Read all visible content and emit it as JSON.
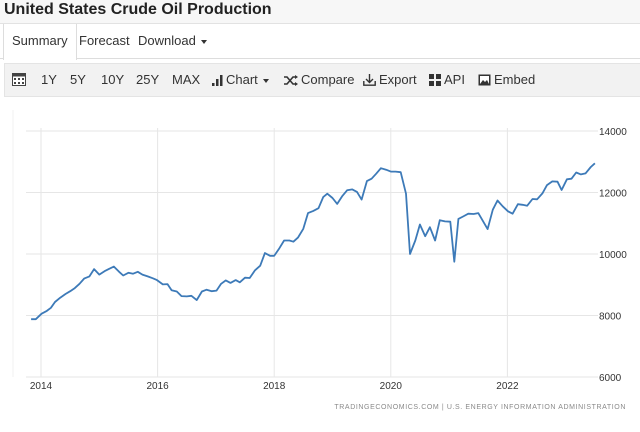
{
  "header": {
    "title": "United States Crude Oil Production"
  },
  "tabs": [
    {
      "label": "Summary",
      "active": true
    },
    {
      "label": "Forecast"
    },
    {
      "label": "Download"
    }
  ],
  "toolbar": {
    "calendar_icon": "calendar-icon",
    "ranges": [
      "1Y",
      "5Y",
      "10Y",
      "25Y",
      "MAX"
    ],
    "chart_label": "Chart",
    "compare_label": "Compare",
    "export_label": "Export",
    "api_label": "API",
    "embed_label": "Embed"
  },
  "source": "TRADINGECONOMICS.COM  |  U.S. ENERGY INFORMATION ADMINISTRATION",
  "chart_data": {
    "type": "line",
    "title": "",
    "xlabel": "",
    "ylabel": "",
    "line_color": "#3d7ab8",
    "grid": true,
    "y_axis_position": "right",
    "xlim": [
      2013.75,
      2023.6
    ],
    "ylim": [
      6000,
      14000
    ],
    "x_ticks": [
      "2014",
      "2016",
      "2018",
      "2020",
      "2022"
    ],
    "y_ticks": [
      "14000",
      "12000",
      "10000",
      "8000",
      "6000"
    ],
    "series": [
      {
        "points": [
          [
            2013.83,
            7880
          ],
          [
            2013.91,
            7880
          ],
          [
            2014.01,
            8060
          ],
          [
            2014.1,
            8150
          ],
          [
            2014.17,
            8250
          ],
          [
            2014.24,
            8440
          ],
          [
            2014.33,
            8580
          ],
          [
            2014.42,
            8700
          ],
          [
            2014.5,
            8790
          ],
          [
            2014.58,
            8890
          ],
          [
            2014.66,
            9030
          ],
          [
            2014.74,
            9200
          ],
          [
            2014.83,
            9270
          ],
          [
            2014.91,
            9510
          ],
          [
            2015.0,
            9330
          ],
          [
            2015.09,
            9440
          ],
          [
            2015.17,
            9520
          ],
          [
            2015.25,
            9590
          ],
          [
            2015.34,
            9420
          ],
          [
            2015.41,
            9300
          ],
          [
            2015.5,
            9390
          ],
          [
            2015.58,
            9360
          ],
          [
            2015.66,
            9420
          ],
          [
            2015.74,
            9330
          ],
          [
            2015.83,
            9270
          ],
          [
            2015.92,
            9210
          ],
          [
            2015.99,
            9150
          ],
          [
            2016.09,
            9010
          ],
          [
            2016.17,
            9020
          ],
          [
            2016.24,
            8820
          ],
          [
            2016.33,
            8780
          ],
          [
            2016.41,
            8630
          ],
          [
            2016.5,
            8620
          ],
          [
            2016.58,
            8640
          ],
          [
            2016.67,
            8500
          ],
          [
            2016.76,
            8780
          ],
          [
            2016.84,
            8840
          ],
          [
            2016.93,
            8790
          ],
          [
            2017.01,
            8810
          ],
          [
            2017.09,
            9030
          ],
          [
            2017.17,
            9140
          ],
          [
            2017.25,
            9060
          ],
          [
            2017.34,
            9150
          ],
          [
            2017.41,
            9080
          ],
          [
            2017.5,
            9230
          ],
          [
            2017.58,
            9220
          ],
          [
            2017.67,
            9470
          ],
          [
            2017.76,
            9620
          ],
          [
            2017.84,
            10030
          ],
          [
            2017.93,
            9940
          ],
          [
            2018.0,
            9940
          ],
          [
            2018.09,
            10190
          ],
          [
            2018.17,
            10440
          ],
          [
            2018.26,
            10440
          ],
          [
            2018.33,
            10400
          ],
          [
            2018.41,
            10540
          ],
          [
            2018.5,
            10820
          ],
          [
            2018.58,
            11330
          ],
          [
            2018.67,
            11400
          ],
          [
            2018.76,
            11490
          ],
          [
            2018.84,
            11850
          ],
          [
            2018.91,
            11960
          ],
          [
            2019.0,
            11820
          ],
          [
            2019.08,
            11630
          ],
          [
            2019.17,
            11890
          ],
          [
            2019.25,
            12070
          ],
          [
            2019.34,
            12100
          ],
          [
            2019.42,
            12020
          ],
          [
            2019.5,
            11770
          ],
          [
            2019.59,
            12370
          ],
          [
            2019.67,
            12450
          ],
          [
            2019.75,
            12610
          ],
          [
            2019.83,
            12790
          ],
          [
            2019.92,
            12740
          ],
          [
            2020.0,
            12680
          ],
          [
            2020.08,
            12680
          ],
          [
            2020.17,
            12660
          ],
          [
            2020.26,
            11960
          ],
          [
            2020.33,
            10000
          ],
          [
            2020.42,
            10440
          ],
          [
            2020.5,
            10960
          ],
          [
            2020.59,
            10580
          ],
          [
            2020.67,
            10870
          ],
          [
            2020.76,
            10440
          ],
          [
            2020.84,
            11100
          ],
          [
            2020.93,
            11060
          ],
          [
            2021.02,
            11050
          ],
          [
            2021.09,
            9750
          ],
          [
            2021.16,
            11140
          ],
          [
            2021.24,
            11220
          ],
          [
            2021.33,
            11310
          ],
          [
            2021.42,
            11300
          ],
          [
            2021.5,
            11330
          ],
          [
            2021.66,
            10810
          ],
          [
            2021.75,
            11440
          ],
          [
            2021.83,
            11740
          ],
          [
            2021.92,
            11550
          ],
          [
            2022.01,
            11390
          ],
          [
            2022.09,
            11310
          ],
          [
            2022.18,
            11620
          ],
          [
            2022.26,
            11600
          ],
          [
            2022.34,
            11570
          ],
          [
            2022.43,
            11790
          ],
          [
            2022.51,
            11780
          ],
          [
            2022.6,
            11970
          ],
          [
            2022.68,
            12240
          ],
          [
            2022.77,
            12360
          ],
          [
            2022.86,
            12350
          ],
          [
            2022.93,
            12080
          ],
          [
            2023.02,
            12430
          ],
          [
            2023.1,
            12450
          ],
          [
            2023.18,
            12650
          ],
          [
            2023.26,
            12590
          ],
          [
            2023.34,
            12620
          ],
          [
            2023.43,
            12830
          ],
          [
            2023.5,
            12950
          ]
        ]
      }
    ]
  }
}
